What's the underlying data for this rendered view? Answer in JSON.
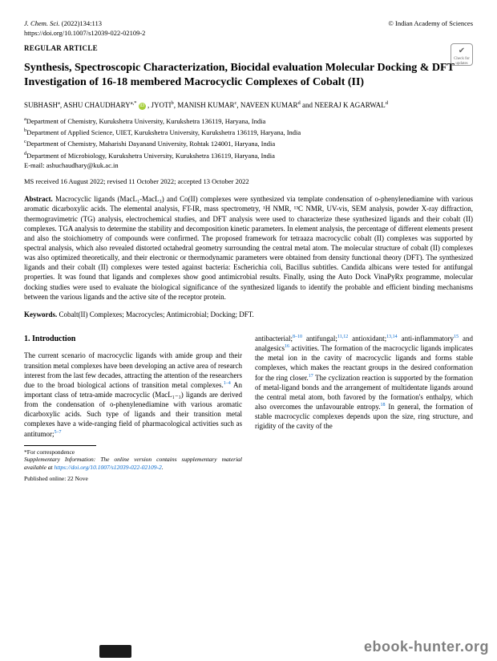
{
  "header": {
    "journal": "J. Chem. Sci.",
    "citation": "(2022)134:113",
    "publisher": "© Indian Academy of Sciences",
    "doi": "https://doi.org/10.1007/s12039-022-02109-2",
    "article_type": "REGULAR ARTICLE",
    "badge_text": "Check for updates"
  },
  "title": "Synthesis, Spectroscopic Characterization, Biocidal evaluation Molecular Docking & DFT Investigation of 16-18 membered Macrocyclic Complexes of Cobalt (II)",
  "authors": {
    "a1": "SUBHASH",
    "a1_aff": "a",
    "a2": "ASHU CHAUDHARY",
    "a2_aff": "a,",
    "a2_corr": "*",
    "a3": "JYOTI",
    "a3_aff": "b",
    "a4": "MANISH KUMAR",
    "a4_aff": "c",
    "a5": "NAVEEN KUMAR",
    "a5_aff": "d",
    "and": "and",
    "a6": "NEERAJ K AGARWAL",
    "a6_aff": "d"
  },
  "affiliations": {
    "a": "Department of Chemistry, Kurukshetra University, Kurukshetra 136119, Haryana, India",
    "b": "Department of Applied Science, UIET, Kurukshetra University, Kurukshetra 136119, Haryana, India",
    "c": "Department of Chemistry, Maharishi Dayanand University, Rohtak 124001, Haryana, India",
    "d": "Department of Microbiology, Kurukshetra University, Kurukshetra 136119, Haryana, India",
    "email_label": "E-mail:",
    "email": "ashuchaudhary@kuk.ac.in"
  },
  "dates": "MS received 16 August 2022; revised 11 October 2022; accepted 13 October 2022",
  "abstract": {
    "label": "Abstract.",
    "text": "Macrocyclic ligands (MacL₁-MacL₃) and Co(II) complexes were synthesized via template condensation of o-phenylenediamine with various aromatic dicarboxylic acids. The elemental analysis, FT-IR, mass spectrometry, ¹H NMR, ¹³C NMR, UV-vis, SEM analysis, powder X-ray diffraction, thermogravimetric (TG) analysis, electrochemical studies, and DFT analysis were used to characterize these synthesized ligands and their cobalt (II) complexes. TGA analysis to determine the stability and decomposition kinetic parameters. In element analysis, the percentage of different elements present and also the stoichiometry of compounds were confirmed. The proposed framework for tetraaza macrocyclic cobalt (II) complexes was supported by spectral analysis, which also revealed distorted octahedral geometry surrounding the central metal atom. The molecular structure of cobalt (II) complexes was also optimized theoretically, and their electronic or thermodynamic parameters were obtained from density functional theory (DFT). The synthesized ligands and their cobalt (II) complexes were tested against bacteria: Escherichia coli, Bacillus subtitles. Candida albicans were tested for antifungal properties. It was found that ligands and complexes show good antimicrobial results. Finally, using the Auto Dock VinaPyRx programme, molecular docking studies were used to evaluate the biological significance of the synthesized ligands to identify the probable and efficient binding mechanisms between the various ligands and the active site of the receptor protein."
  },
  "keywords": {
    "label": "Keywords.",
    "text": "Cobalt(II) Complexes; Macrocycles; Antimicrobial; Docking; DFT."
  },
  "intro": {
    "heading": "1.  Introduction",
    "col1": "The current scenario of macrocyclic ligands with amide group and their transition metal complexes have been developing an active area of research interest from the last few decades, attracting the attention of the researchers due to the broad biological actions of transition metal complexes.",
    "col1_ref1": "1–4",
    "col1b": " An important class of tetra-amide macrocyclic (MacL₁₋₃) ligands are derived from the condensation of o-phenylenediamine with various aromatic dicarboxylic acids. Such type of ligands and their transition metal complexes have a wide-ranging field of pharmacological activities such as antitumor;",
    "col1_ref2": "5–7",
    "col2a": "antibacterial;",
    "col2_ref1": "8–10",
    "col2b": " antifungal;",
    "col2_ref2": "11,12",
    "col2c": " antioxidant;",
    "col2_ref3": "13,14",
    "col2d": " anti-inflammatory",
    "col2_ref4": "15",
    "col2e": " and analgesics",
    "col2_ref5": "16",
    "col2f": " activities. The formation of the macrocyclic ligands implicates the metal ion in the cavity of macrocyclic ligands and forms stable complexes, which makes the reactant groups in the desired conformation for the ring closer.",
    "col2_ref6": "17",
    "col2g": " The cyclization reaction is supported by the formation of metal-ligand bonds and the arrangement of multidentate ligands around the central metal atom, both favored by the formation's enthalpy, which also overcomes the unfavourable entropy.",
    "col2_ref7": "18",
    "col2h": " In general, the formation of stable macrocyclic complexes depends upon the size, ring structure, and rigidity of the cavity of the"
  },
  "footnote": {
    "corr": "*For correspondence",
    "supp_label": "Supplementary Information:",
    "supp_text": "The online version contains supplementary material available at",
    "supp_link": "https://doi.org/10.1007/s12039-022-02109-2",
    "pub": "Published online: 22 Nove"
  },
  "watermark": "ebook-hunter.org"
}
